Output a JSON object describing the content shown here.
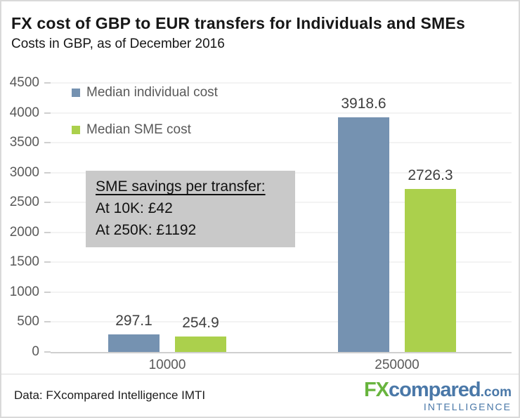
{
  "header": {
    "title": "FX cost of GBP to EUR transfers for Individuals and SMEs",
    "subtitle": "Costs in GBP, as of December 2016"
  },
  "chart_data": {
    "type": "bar",
    "title": "FX cost of GBP to EUR transfers for Individuals and SMEs",
    "subtitle": "Costs in GBP, as of December 2016",
    "categories": [
      "10000",
      "250000"
    ],
    "series": [
      {
        "name": "Median individual cost",
        "color": "#7592b1",
        "values": [
          297.1,
          3918.6
        ]
      },
      {
        "name": "Median SME cost",
        "color": "#abd04c",
        "values": [
          254.9,
          2726.3
        ]
      }
    ],
    "xlabel": "",
    "ylabel": "",
    "ylim": [
      0,
      4500
    ],
    "y_ticks": [
      0,
      500,
      1000,
      1500,
      2000,
      2500,
      3000,
      3500,
      4000,
      4500
    ],
    "grid": true,
    "data_labels": true,
    "legend_position": "inside-top-left"
  },
  "annotation": {
    "heading": "SME savings per transfer:",
    "line1": "At 10K: £42",
    "line2": "At 250K: £1192"
  },
  "footer": {
    "source": "Data: FXcompared Intelligence IMTI",
    "logo": {
      "part1": "FX",
      "part2": "compared",
      "part3": ".com",
      "tagline": "INTELLIGENCE",
      "green": "#68b43e",
      "blue": "#4a78a8"
    }
  }
}
